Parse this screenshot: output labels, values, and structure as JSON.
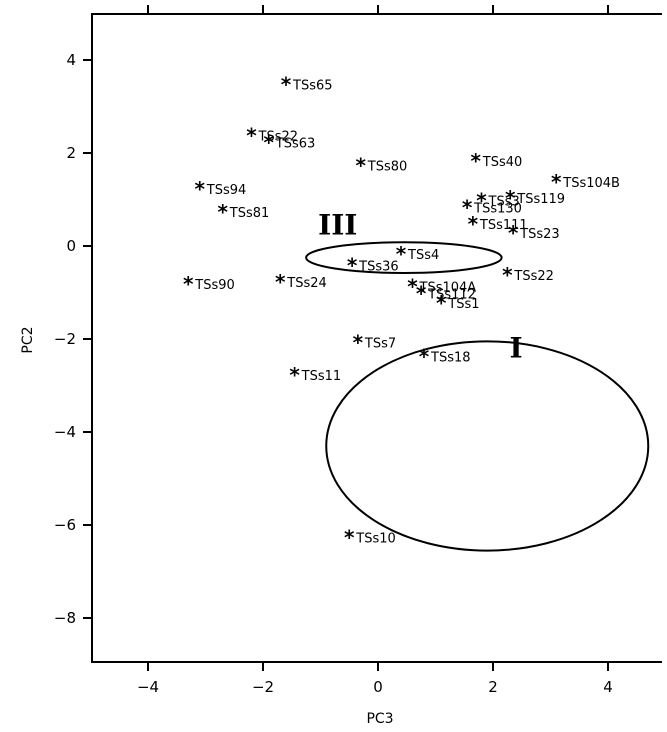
{
  "chart_data": {
    "type": "scatter",
    "title": "",
    "xlabel": "PC3",
    "ylabel": "PC2",
    "xlim": [
      -5,
      5
    ],
    "ylim": [
      -9,
      5
    ],
    "xticks": [
      -4,
      -2,
      0,
      2,
      4
    ],
    "yticks": [
      4,
      2,
      0,
      -2,
      -4,
      -6,
      -8
    ],
    "xtick_labels": [
      "−4",
      "−2",
      "0",
      "2",
      "4"
    ],
    "ytick_labels": [
      "4",
      "2",
      "0",
      "−2",
      "−4",
      "−6",
      "−8"
    ],
    "marker": "*",
    "grid": false,
    "points": [
      {
        "label": "TSs65",
        "x": -1.6,
        "y": 3.5
      },
      {
        "label": "TSs22",
        "x": -2.2,
        "y": 2.4
      },
      {
        "label": "TSs63",
        "x": -1.9,
        "y": 2.25
      },
      {
        "label": "TSs80",
        "x": -0.3,
        "y": 1.75
      },
      {
        "label": "TSs40",
        "x": 1.7,
        "y": 1.85
      },
      {
        "label": "TSs104B",
        "x": 3.1,
        "y": 1.4
      },
      {
        "label": "TSs94",
        "x": -3.1,
        "y": 1.25
      },
      {
        "label": "TSs81",
        "x": -2.7,
        "y": 0.75
      },
      {
        "label": "TSs3",
        "x": 1.8,
        "y": 1.0
      },
      {
        "label": "TSs130",
        "x": 1.55,
        "y": 0.85
      },
      {
        "label": "TSs119",
        "x": 2.3,
        "y": 1.05
      },
      {
        "label": "TSs111",
        "x": 1.65,
        "y": 0.5
      },
      {
        "label": "TSs23",
        "x": 2.35,
        "y": 0.3
      },
      {
        "label": "TSs4",
        "x": 0.4,
        "y": -0.15
      },
      {
        "label": "TSs36",
        "x": -0.45,
        "y": -0.4
      },
      {
        "label": "TSs22",
        "x": 2.25,
        "y": -0.6
      },
      {
        "label": "TSs90",
        "x": -3.3,
        "y": -0.8
      },
      {
        "label": "TSs24",
        "x": -1.7,
        "y": -0.75
      },
      {
        "label": "TSs104A",
        "x": 0.6,
        "y": -0.85
      },
      {
        "label": "TSs112",
        "x": 0.75,
        "y": -1.0
      },
      {
        "label": "TSs1",
        "x": 1.1,
        "y": -1.2
      },
      {
        "label": "TSs7",
        "x": -0.35,
        "y": -2.05
      },
      {
        "label": "TSs18",
        "x": 0.8,
        "y": -2.35
      },
      {
        "label": "TSs11",
        "x": -1.45,
        "y": -2.75
      },
      {
        "label": "TSs10",
        "x": -0.5,
        "y": -6.25
      }
    ],
    "annotations": [
      {
        "text": "III",
        "x": -0.7,
        "y": 0.25
      },
      {
        "text": "I",
        "x": 2.4,
        "y": -2.4
      }
    ],
    "ellipses": [
      {
        "name": "group-III",
        "cx": 0.45,
        "cy": -0.25,
        "rx": 1.7,
        "ry": 0.33
      },
      {
        "name": "group-I",
        "cx": 1.9,
        "cy": -4.3,
        "rx": 2.8,
        "ry": 2.25
      }
    ]
  }
}
